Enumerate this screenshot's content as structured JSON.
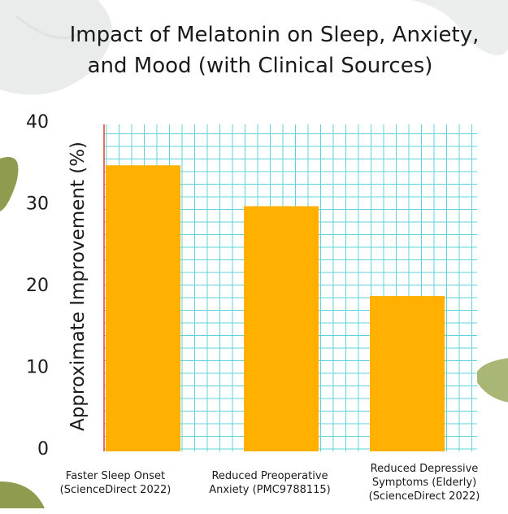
{
  "chart_data": {
    "type": "bar",
    "title": "Impact of Melatonin on Sleep, Anxiety, and Mood (with Clinical Sources)",
    "ylabel": "Approximate Improvement (%)",
    "xlabel": "",
    "categories": [
      "Faster Sleep Onset\n(ScienceDirect 2022)",
      "Reduced Preoperative\nAnxiety (PMC9788115)",
      "Reduced Depressive\nSymptoms (Elderly)\n(ScienceDirect 2022)"
    ],
    "values": [
      35,
      30,
      19
    ],
    "ylim": [
      0,
      40
    ],
    "yticks": [
      0,
      10,
      20,
      30,
      40
    ],
    "grid": true,
    "bar_color": "#FFB000",
    "grid_color": "#5FD3D8",
    "y_axis_color": "#E53935"
  }
}
